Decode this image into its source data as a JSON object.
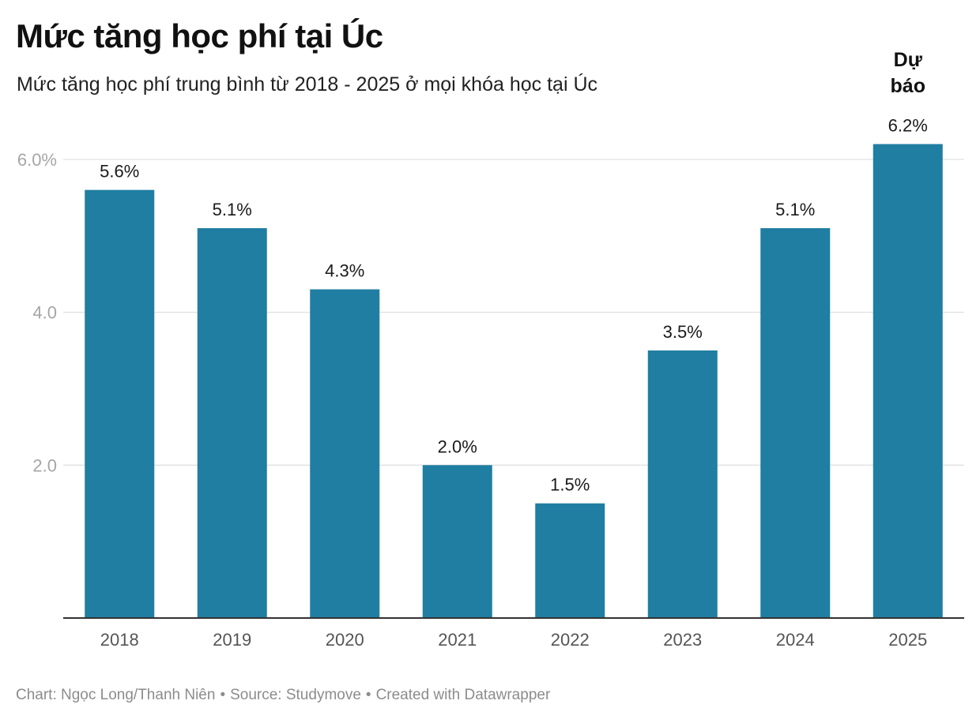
{
  "header": {
    "title": "Mức tăng học phí tại Úc",
    "subtitle": "Mức tăng học phí trung bình từ 2018 - 2025 ở mọi khóa học tại Úc"
  },
  "chart_data": {
    "type": "bar",
    "title": "Mức tăng học phí tại Úc",
    "subtitle": "Mức tăng học phí trung bình từ 2018 - 2025 ở mọi khóa học tại Úc",
    "categories": [
      "2018",
      "2019",
      "2020",
      "2021",
      "2022",
      "2023",
      "2024",
      "2025"
    ],
    "values": [
      5.6,
      5.1,
      4.3,
      2.0,
      1.5,
      3.5,
      5.1,
      6.2
    ],
    "value_labels": [
      "5.6%",
      "5.1%",
      "4.3%",
      "2.0%",
      "1.5%",
      "3.5%",
      "5.1%",
      "6.2%"
    ],
    "ylim": [
      0,
      6.2
    ],
    "yticks": [
      2,
      4,
      6
    ],
    "ytick_labels": [
      "2.0",
      "4.0",
      "6.0%"
    ],
    "grid": true,
    "legend": "none",
    "bar_color": "#1f7ea1",
    "annotations": [
      {
        "category": "2025",
        "text_lines": [
          "Dự",
          "báo"
        ]
      }
    ]
  },
  "footer": {
    "chart_credit": "Chart: Ngọc Long/Thanh Niên",
    "source": "Source: Studymove",
    "created_with": "Created with Datawrapper",
    "separator": "•"
  },
  "colors": {
    "bar": "#1f7ea1",
    "grid": "#e0e0e0",
    "axis": "#333333",
    "tick_text": "#a6a6a6",
    "category_text": "#555555",
    "footer_text": "#8c8c8c"
  }
}
